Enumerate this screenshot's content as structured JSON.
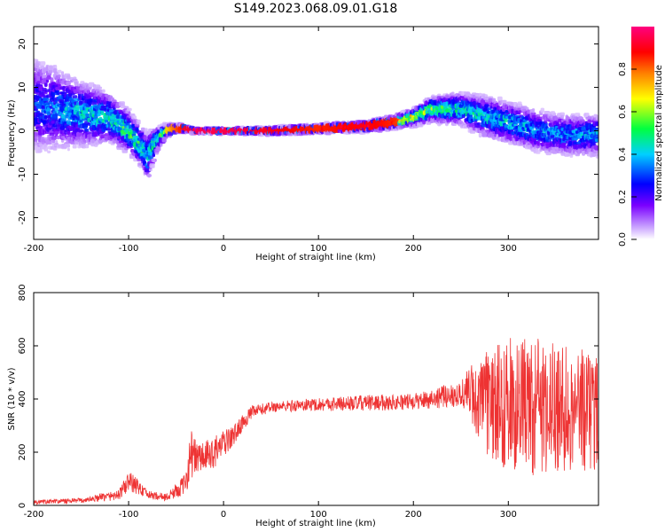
{
  "title": "S149.2023.068.09.01.G18",
  "chart_data": [
    {
      "type": "heatmap",
      "xlabel": "Height of straight line (km)",
      "ylabel": "Frequency (Hz)",
      "xlim": [
        -200,
        395
      ],
      "ylim": [
        -25,
        24
      ],
      "xticks": [
        -200,
        -100,
        0,
        100,
        200,
        300
      ],
      "yticks": [
        -20,
        -10,
        0,
        10,
        20
      ],
      "colorbar": {
        "label": "Normalized spectral amplitude",
        "range": [
          0,
          1
        ],
        "ticks": [
          0.0,
          0.2,
          0.4,
          0.6,
          0.8
        ],
        "colormap": "rainbow (purple-blue-cyan-green-yellow-red-magenta)"
      },
      "ridge": {
        "x": [
          -200,
          -150,
          -120,
          -100,
          -85,
          -80,
          -70,
          -60,
          -50,
          -40,
          -30,
          0,
          50,
          100,
          150,
          180,
          200,
          220,
          250,
          280,
          300,
          330,
          360,
          395
        ],
        "center_hz": [
          6,
          4,
          3,
          0,
          -4,
          -6,
          -2,
          0,
          0.5,
          0.5,
          0,
          0,
          0,
          0.5,
          1,
          2,
          3,
          5,
          5,
          3,
          2,
          0,
          -1,
          -1
        ],
        "spread_hz": [
          12,
          8,
          6,
          5,
          5,
          6,
          3,
          1.5,
          1,
          0.8,
          0.5,
          0.6,
          0.8,
          1,
          1.2,
          1.5,
          2,
          3,
          4,
          5,
          5,
          5,
          5,
          5
        ],
        "peak_amplitude": [
          0.3,
          0.45,
          0.5,
          0.55,
          0.5,
          0.45,
          0.5,
          0.7,
          0.8,
          0.9,
          0.95,
          0.95,
          0.9,
          0.85,
          0.9,
          0.85,
          0.75,
          0.6,
          0.5,
          0.45,
          0.45,
          0.4,
          0.4,
          0.4
        ]
      },
      "grid": false
    },
    {
      "type": "line",
      "xlabel": "Height of straight line (km)",
      "ylabel": "SNR (10 * v/v)",
      "xlim": [
        -200,
        395
      ],
      "ylim": [
        0,
        800
      ],
      "xticks": [
        -200,
        -100,
        0,
        100,
        200,
        300
      ],
      "yticks": [
        0,
        200,
        400,
        600,
        800
      ],
      "series": [
        {
          "color": "#ee3333",
          "envelope_x": [
            -200,
            -150,
            -110,
            -100,
            -90,
            -80,
            -60,
            -40,
            -35,
            -30,
            -20,
            -10,
            0,
            10,
            20,
            30,
            50,
            100,
            150,
            200,
            250,
            260,
            270,
            300,
            330,
            360,
            395
          ],
          "envelope_mean": [
            12,
            18,
            40,
            90,
            70,
            40,
            30,
            80,
            200,
            180,
            180,
            200,
            230,
            260,
            310,
            350,
            370,
            380,
            385,
            390,
            420,
            430,
            380,
            380,
            370,
            370,
            360
          ],
          "envelope_noise": [
            8,
            10,
            20,
            40,
            30,
            15,
            15,
            40,
            100,
            70,
            60,
            60,
            50,
            40,
            30,
            25,
            20,
            25,
            30,
            30,
            50,
            100,
            180,
            250,
            260,
            240,
            230
          ]
        }
      ],
      "grid": false
    }
  ]
}
